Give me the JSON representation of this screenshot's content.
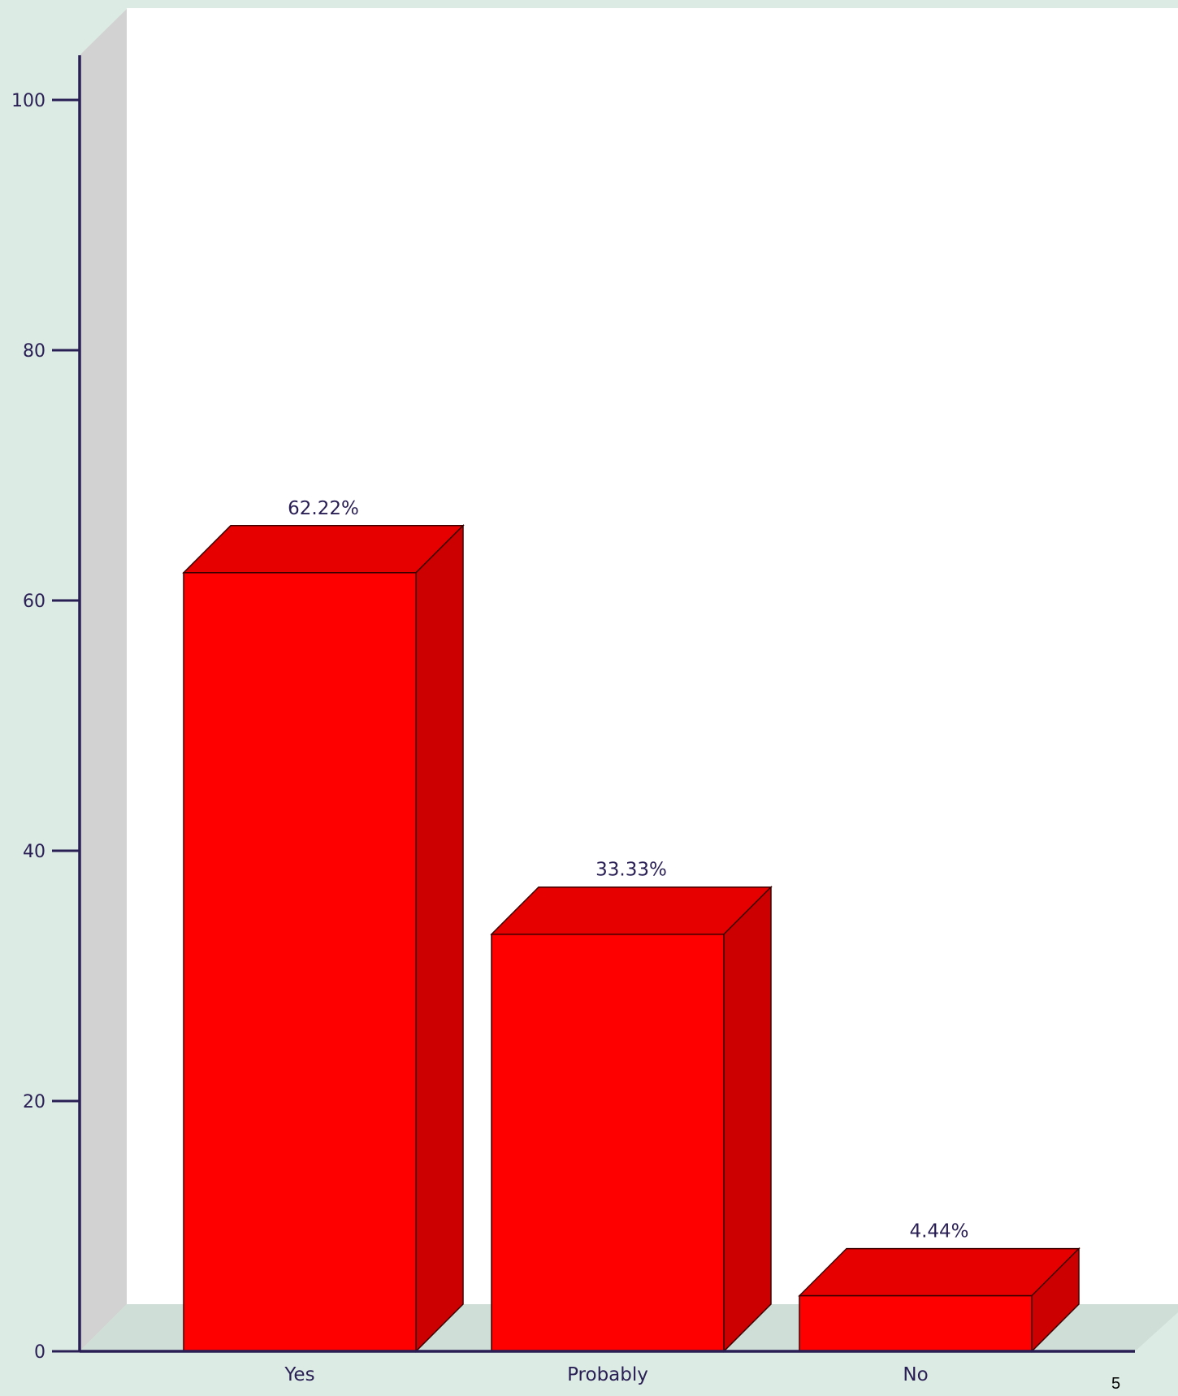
{
  "chart_data": {
    "type": "bar",
    "style": "3d",
    "categories": [
      "Yes",
      "Probably",
      "No"
    ],
    "values": [
      62.22,
      33.33,
      4.44
    ],
    "value_labels": [
      "62.22%",
      "33.33%",
      "4.44%"
    ],
    "ylim": [
      0,
      100
    ],
    "yticks": [
      0,
      20,
      40,
      60,
      80,
      100
    ],
    "ytick_labels": [
      "0",
      "20",
      "40",
      "60",
      "80",
      "100"
    ],
    "grid": false,
    "legend": "none",
    "colors": {
      "bar_front": "#ff0000",
      "bar_top": "#e60000",
      "bar_side": "#cc0000",
      "axis": "#2a1f55",
      "plot_background": "#ffffff",
      "back_wall": "#d2d2d2",
      "floor": "#cfdfd7",
      "page_background": "#dcebe4"
    }
  },
  "footer": {
    "page_number": "5"
  }
}
